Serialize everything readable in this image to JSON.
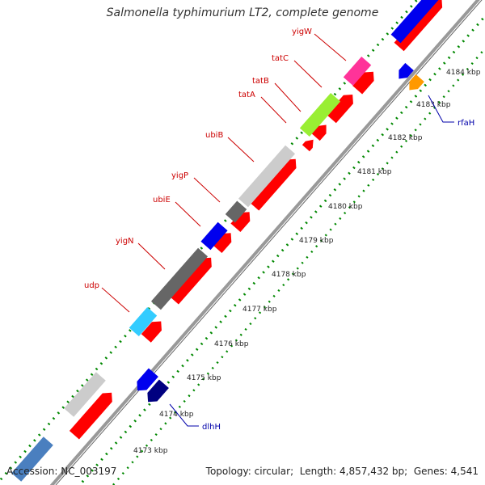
{
  "title": "Salmonella typhimurium LT2, complete genome",
  "footer": {
    "accession_label": "Accession:",
    "accession": "NC_003197",
    "topology_label": "Topology:",
    "topology": "circular",
    "length_label": "Length:",
    "length": "4,857,432 bp",
    "genes_label": "Genes:",
    "genes": "4,541"
  },
  "colors": {
    "forward": "#ff0000",
    "reverse_blue": "#0000ee",
    "navy": "#000080",
    "cyan": "#33ccff",
    "steel": "#4a7fbf",
    "light_gray": "#cccccc",
    "dark_gray": "#666666",
    "mid_gray": "#888888",
    "green": "#99ee33",
    "magenta": "#ff3399",
    "orange": "#ff9900",
    "label_red": "#cc0000",
    "label_blue": "#0000aa",
    "dots_green": "#008800"
  },
  "scale_ticks": [
    "4173 kbp",
    "4174 kbp",
    "4175 kbp",
    "4176 kbp",
    "4177 kbp",
    "4178 kbp",
    "4179 kbp",
    "4180 kbp",
    "4181 kbp",
    "4182 kbp",
    "4183 kbp",
    "4184 kbp"
  ],
  "gene_labels": [
    {
      "name": "yigW",
      "color": "label_red"
    },
    {
      "name": "tatC",
      "color": "label_red"
    },
    {
      "name": "tatB",
      "color": "label_red"
    },
    {
      "name": "tatA",
      "color": "label_red"
    },
    {
      "name": "ubiB",
      "color": "label_red"
    },
    {
      "name": "yigP",
      "color": "label_red"
    },
    {
      "name": "ubiE",
      "color": "label_red"
    },
    {
      "name": "yigN",
      "color": "label_red"
    },
    {
      "name": "udp",
      "color": "label_red"
    },
    {
      "name": "rfaH",
      "color": "label_blue"
    },
    {
      "name": "dlhH",
      "color": "label_blue"
    }
  ]
}
